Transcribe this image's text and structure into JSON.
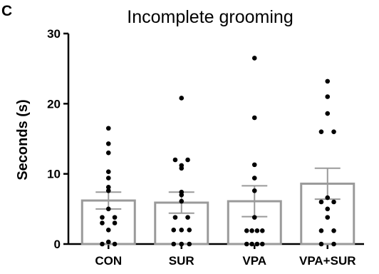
{
  "panel_label": "C",
  "chart_data": {
    "type": "bar",
    "title": "Incomplete grooming",
    "xlabel": "",
    "ylabel": "Seconds (s)",
    "ylim": [
      0,
      30
    ],
    "yticks": [
      0,
      10,
      20,
      30
    ],
    "categories": [
      "CON",
      "SUR",
      "VPA",
      "VPA+SUR"
    ],
    "series": [
      {
        "values": [
          6.2,
          5.9,
          6.1,
          8.6
        ],
        "sem": [
          1.2,
          1.5,
          2.2,
          2.2
        ]
      }
    ],
    "points": [
      [
        16.5,
        14.3,
        13.0,
        10.3,
        9.4,
        8.1,
        7.6,
        5.0,
        3.8,
        3.8,
        3.0,
        3.0,
        2.0,
        0.3,
        0.0,
        0.0
      ],
      [
        20.8,
        12.0,
        12.0,
        11.2,
        10.8,
        7.4,
        7.0,
        6.1,
        3.8,
        3.8,
        2.0,
        2.0,
        2.0,
        0.0,
        0.0,
        0.0
      ],
      [
        26.5,
        18.0,
        11.3,
        9.4,
        7.6,
        3.8,
        1.9,
        1.9,
        1.9,
        1.9,
        0.0,
        0.0,
        0.0,
        0.0
      ],
      [
        23.2,
        21.0,
        18.6,
        16.0,
        16.0,
        6.6,
        6.0,
        6.0,
        5.0,
        3.8,
        1.9,
        1.9,
        0.0,
        0.0
      ]
    ],
    "colors": {
      "bar_edge": "#9a9a9a",
      "bar_fill": "#ffffff",
      "points": "#000000",
      "axis": "#000000"
    },
    "grid": false,
    "legend": "none"
  }
}
